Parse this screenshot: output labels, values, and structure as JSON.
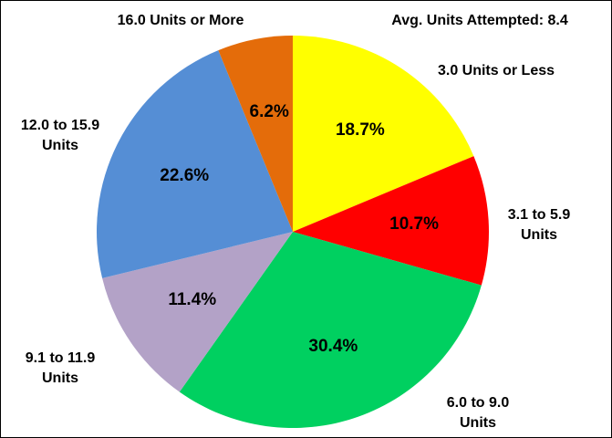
{
  "chart_data": {
    "type": "pie",
    "annotation": "Avg. Units Attempted: 8.4",
    "categories": [
      "3.0 Units or Less",
      "3.1 to 5.9 Units",
      "6.0 to 9.0 Units",
      "9.1 to 11.9 Units",
      "12.0 to 15.9 Units",
      "16.0 Units or More"
    ],
    "values": [
      18.7,
      10.7,
      30.4,
      11.4,
      22.6,
      6.2
    ],
    "value_labels": [
      "18.7%",
      "10.7%",
      "30.4%",
      "11.4%",
      "22.6%",
      "6.2%"
    ],
    "colors": [
      "#ffff00",
      "#ff0000",
      "#00d060",
      "#b3a2c7",
      "#558ed5",
      "#e46c0a"
    ]
  }
}
